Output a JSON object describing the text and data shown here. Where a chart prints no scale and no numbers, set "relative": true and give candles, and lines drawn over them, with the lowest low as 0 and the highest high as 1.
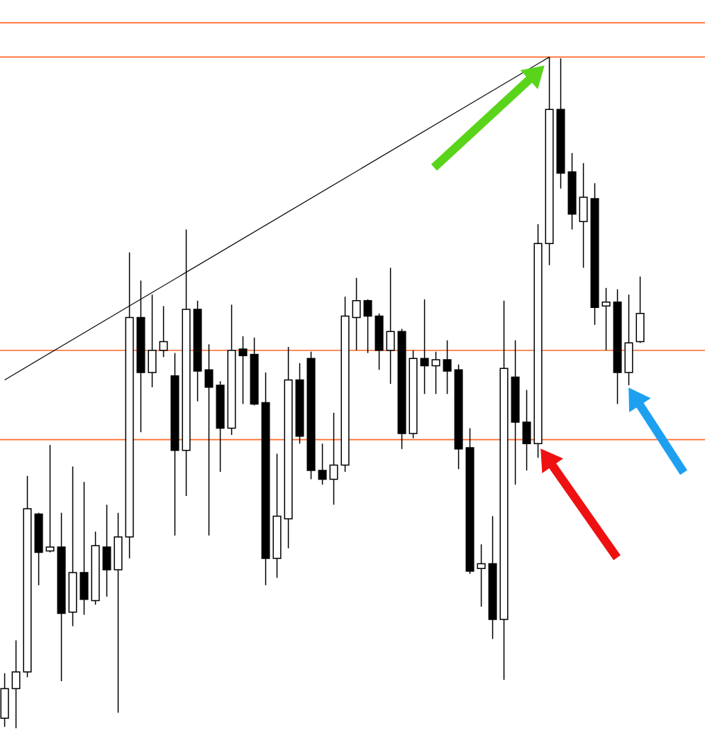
{
  "chart_data": {
    "type": "candlestick",
    "relative": true,
    "categories": [
      null,
      null,
      null,
      null,
      null,
      null,
      null,
      null,
      null,
      null,
      null,
      null,
      null,
      null,
      null,
      null,
      null,
      null,
      null,
      null,
      null,
      null,
      null,
      null,
      null,
      null,
      null,
      null,
      null,
      null,
      null,
      null,
      null,
      null,
      null,
      null,
      null,
      null,
      null,
      null,
      null,
      null,
      null,
      null,
      null,
      null,
      null,
      null,
      null,
      null,
      null,
      null,
      null,
      null,
      null,
      null,
      null
    ],
    "ohlc": [
      [
        0.015,
        0.082,
        0.002,
        0.059
      ],
      [
        0.059,
        0.131,
        0.0,
        0.084
      ],
      [
        0.084,
        0.376,
        0.076,
        0.327
      ],
      [
        0.319,
        0.321,
        0.213,
        0.262
      ],
      [
        0.264,
        0.422,
        0.262,
        0.27
      ],
      [
        0.27,
        0.321,
        0.07,
        0.171
      ],
      [
        0.173,
        0.39,
        0.152,
        0.232
      ],
      [
        0.232,
        0.367,
        0.169,
        0.192
      ],
      [
        0.19,
        0.293,
        0.184,
        0.272
      ],
      [
        0.27,
        0.333,
        0.196,
        0.236
      ],
      [
        0.236,
        0.321,
        0.023,
        0.285
      ],
      [
        0.285,
        0.709,
        0.253,
        0.612
      ],
      [
        0.612,
        0.667,
        0.441,
        0.53
      ],
      [
        0.53,
        0.646,
        0.508,
        0.563
      ],
      [
        0.563,
        0.629,
        0.553,
        0.576
      ],
      [
        0.525,
        0.559,
        0.287,
        0.414
      ],
      [
        0.414,
        0.743,
        0.346,
        0.624
      ],
      [
        0.624,
        0.637,
        0.487,
        0.532
      ],
      [
        0.534,
        0.572,
        0.287,
        0.508
      ],
      [
        0.511,
        0.517,
        0.382,
        0.447
      ],
      [
        0.447,
        0.631,
        0.437,
        0.563
      ],
      [
        0.565,
        0.584,
        0.483,
        0.555
      ],
      [
        0.557,
        0.582,
        0.481,
        0.483
      ],
      [
        0.485,
        0.53,
        0.213,
        0.253
      ],
      [
        0.253,
        0.409,
        0.224,
        0.316
      ],
      [
        0.312,
        0.568,
        0.268,
        0.519
      ],
      [
        0.519,
        0.544,
        0.424,
        0.435
      ],
      [
        0.551,
        0.561,
        0.371,
        0.384
      ],
      [
        0.384,
        0.424,
        0.363,
        0.371
      ],
      [
        0.371,
        0.47,
        0.333,
        0.392
      ],
      [
        0.392,
        0.643,
        0.382,
        0.614
      ],
      [
        0.612,
        0.671,
        0.563,
        0.637
      ],
      [
        0.637,
        0.639,
        0.559,
        0.614
      ],
      [
        0.614,
        0.618,
        0.534,
        0.563
      ],
      [
        0.563,
        0.686,
        0.513,
        0.591
      ],
      [
        0.591,
        0.595,
        0.416,
        0.439
      ],
      [
        0.439,
        0.563,
        0.432,
        0.551
      ],
      [
        0.551,
        0.639,
        0.498,
        0.54
      ],
      [
        0.54,
        0.561,
        0.498,
        0.549
      ],
      [
        0.549,
        0.578,
        0.498,
        0.532
      ],
      [
        0.534,
        0.542,
        0.386,
        0.416
      ],
      [
        0.418,
        0.447,
        0.23,
        0.234
      ],
      [
        0.238,
        0.274,
        0.181,
        0.245
      ],
      [
        0.245,
        0.316,
        0.133,
        0.162
      ],
      [
        0.162,
        0.637,
        0.072,
        0.536
      ],
      [
        0.523,
        0.578,
        0.363,
        0.456
      ],
      [
        0.456,
        0.504,
        0.384,
        0.424
      ],
      [
        0.424,
        0.751,
        0.403,
        0.722
      ],
      [
        0.722,
        1.0,
        0.69,
        0.922
      ],
      [
        0.922,
        0.998,
        0.804,
        0.827
      ],
      [
        0.829,
        0.857,
        0.743,
        0.766
      ],
      [
        0.755,
        0.842,
        0.686,
        0.791
      ],
      [
        0.789,
        0.812,
        0.601,
        0.627
      ],
      [
        0.629,
        0.656,
        0.563,
        0.635
      ],
      [
        0.635,
        0.654,
        0.483,
        0.53
      ],
      [
        0.53,
        0.646,
        0.511,
        0.574
      ],
      [
        0.576,
        0.673,
        0.574,
        0.618
      ]
    ],
    "series": [
      {
        "type": "line",
        "color": "#000000",
        "values": [
          0.519,
          null,
          null,
          null,
          null,
          null,
          null,
          null,
          null,
          null,
          null,
          null,
          null,
          null,
          null,
          null,
          null,
          null,
          null,
          null,
          null,
          null,
          null,
          null,
          null,
          null,
          null,
          null,
          null,
          null,
          null,
          null,
          null,
          null,
          null,
          null,
          null,
          null,
          null,
          null,
          null,
          null,
          null,
          null,
          null,
          null,
          null,
          null,
          1.0,
          null,
          null,
          null,
          null,
          null,
          null,
          null,
          null
        ]
      }
    ],
    "ref_lines": [
      {
        "axis": "y",
        "value": 1.051,
        "color": "#ff6a2a"
      },
      {
        "axis": "y",
        "value": 1.0,
        "color": "#ff6a2a"
      },
      {
        "axis": "y",
        "value": 0.563,
        "color": "#ff6a2a"
      },
      {
        "axis": "y",
        "value": 0.43,
        "color": "#ff6a2a"
      }
    ]
  }
}
